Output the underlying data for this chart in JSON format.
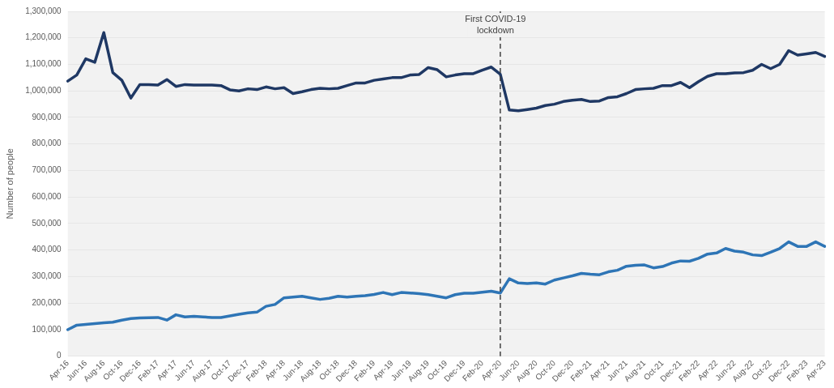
{
  "chart_data": {
    "type": "line",
    "ylabel": "Number of people",
    "categories": [
      "Apr-16",
      null,
      "Jun-16",
      null,
      "Aug-16",
      null,
      "Oct-16",
      null,
      "Dec-16",
      null,
      "Feb-17",
      null,
      "Apr-17",
      null,
      "Jun-17",
      null,
      "Aug-17",
      null,
      "Oct-17",
      null,
      "Dec-17",
      null,
      "Feb-18",
      null,
      "Apr-18",
      null,
      "Jun-18",
      null,
      "Aug-18",
      null,
      "Oct-18",
      null,
      "Dec-18",
      null,
      "Feb-19",
      null,
      "Apr-19",
      null,
      "Jun-19",
      null,
      "Aug-19",
      null,
      "Oct-19",
      null,
      "Dec-19",
      null,
      "Feb-20",
      null,
      "Apr-20",
      null,
      "Jun-20",
      null,
      "Aug-20",
      null,
      "Oct-20",
      null,
      "Dec-20",
      null,
      "Feb-21",
      null,
      "Apr-21",
      null,
      "Jun-21",
      null,
      "Aug-21",
      null,
      "Oct-21",
      null,
      "Dec-21",
      null,
      "Feb-22",
      null,
      "Apr-22",
      null,
      "Jun-22",
      null,
      "Aug-22",
      null,
      "Oct-22",
      null,
      "Dec-22",
      null,
      "Feb-23",
      null,
      "Apr-23"
    ],
    "series": [
      {
        "color": "#1f3864",
        "values": [
          1037000,
          1060000,
          1121000,
          1108000,
          1220000,
          1069000,
          1040000,
          973000,
          1024000,
          1024000,
          1022000,
          1043000,
          1017000,
          1024000,
          1022000,
          1022000,
          1022000,
          1020000,
          1004000,
          1000000,
          1008000,
          1005000,
          1015000,
          1008000,
          1012000,
          990000,
          997000,
          1005000,
          1010000,
          1008000,
          1010000,
          1020000,
          1030000,
          1030000,
          1040000,
          1045000,
          1050000,
          1050000,
          1060000,
          1062000,
          1088000,
          1080000,
          1053000,
          1060000,
          1065000,
          1065000,
          1078000,
          1090000,
          1063000,
          928000,
          925000,
          930000,
          935000,
          945000,
          950000,
          960000,
          965000,
          968000,
          960000,
          962000,
          975000,
          978000,
          990000,
          1005000,
          1008000,
          1010000,
          1020000,
          1020000,
          1032000,
          1012000,
          1035000,
          1055000,
          1065000,
          1065000,
          1068000,
          1069000,
          1078000,
          1100000,
          1084000,
          1100000,
          1152000,
          1135000,
          1140000,
          1145000,
          1130000
        ]
      },
      {
        "color": "#2e75b6",
        "values": [
          100000,
          117000,
          120000,
          123000,
          126000,
          128000,
          136000,
          142000,
          144000,
          145000,
          146000,
          136000,
          156000,
          148000,
          150000,
          148000,
          146000,
          146000,
          152000,
          158000,
          163000,
          166000,
          188000,
          195000,
          220000,
          223000,
          226000,
          220000,
          214000,
          218000,
          226000,
          223000,
          226000,
          228000,
          233000,
          240000,
          232000,
          240000,
          238000,
          236000,
          232000,
          226000,
          220000,
          232000,
          237000,
          237000,
          241000,
          245000,
          238000,
          292000,
          276000,
          274000,
          276000,
          272000,
          287000,
          295000,
          303000,
          312000,
          309000,
          307000,
          318000,
          324000,
          339000,
          343000,
          344000,
          333000,
          338000,
          351000,
          359000,
          358000,
          369000,
          385000,
          389000,
          406000,
          396000,
          392000,
          382000,
          379000,
          392000,
          406000,
          431000,
          414000,
          414000,
          431000,
          414000
        ]
      }
    ],
    "ylim": [
      0,
      1300000
    ],
    "yticks": [
      0,
      {
        "value": 100000,
        "label": "100,000"
      },
      {
        "value": 200000,
        "label": "200,000"
      },
      {
        "value": 300000,
        "label": "300,000"
      },
      {
        "value": 400000,
        "label": "400,000"
      },
      {
        "value": 500000,
        "label": "500,000"
      },
      {
        "value": 600000,
        "label": "600,000"
      },
      {
        "value": 700000,
        "label": "700,000"
      },
      {
        "value": 800000,
        "label": "800,000"
      },
      {
        "value": 900000,
        "label": "900,000"
      },
      {
        "value": 1000000,
        "label": "1,000,000"
      },
      {
        "value": 1100000,
        "label": "1,100,000"
      },
      {
        "value": 1200000,
        "label": "1,200,000"
      },
      {
        "value": 1300000,
        "label": "1,300,000"
      }
    ],
    "grid": "y",
    "legend": false,
    "marker": "none",
    "line_style": "solid",
    "ref_lines": [
      {
        "axis": "x",
        "value": "Apr-20",
        "label": "First COVID-19 lockdown",
        "color": "#404040",
        "line_style": "dashed"
      }
    ]
  }
}
